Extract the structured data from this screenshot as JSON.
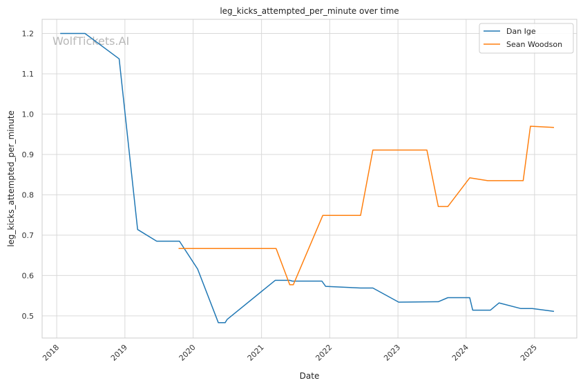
{
  "chart_data": {
    "type": "line",
    "title": "leg_kicks_attempted_per_minute over time",
    "xlabel": "Date",
    "ylabel": "leg_kicks_attempted_per_minute",
    "watermark": "WolfTickets.AI",
    "x_ticks": [
      "2018",
      "2019",
      "2020",
      "2021",
      "2022",
      "2023",
      "2024",
      "2025"
    ],
    "y_ticks": [
      "0.5",
      "0.6",
      "0.7",
      "0.8",
      "0.9",
      "1.0",
      "1.1",
      "1.2"
    ],
    "ylim": [
      0.445,
      1.235
    ],
    "xlim": [
      "2017-10-15",
      "2025-08-15"
    ],
    "grid": true,
    "legend_position": "top-right",
    "series": [
      {
        "name": "Dan Ige",
        "color": "#1f77b4",
        "points": [
          [
            "2018-01-20",
            1.2
          ],
          [
            "2018-06-01",
            1.2
          ],
          [
            "2018-12-01",
            1.137
          ],
          [
            "2019-03-10",
            0.714
          ],
          [
            "2019-06-20",
            0.685
          ],
          [
            "2019-10-20",
            0.685
          ],
          [
            "2020-01-25",
            0.616
          ],
          [
            "2020-05-15",
            0.483
          ],
          [
            "2020-06-20",
            0.483
          ],
          [
            "2020-07-01",
            0.491
          ],
          [
            "2021-03-15",
            0.588
          ],
          [
            "2021-06-01",
            0.588
          ],
          [
            "2021-06-15",
            0.586
          ],
          [
            "2021-11-20",
            0.586
          ],
          [
            "2021-12-10",
            0.573
          ],
          [
            "2022-06-15",
            0.569
          ],
          [
            "2022-08-20",
            0.569
          ],
          [
            "2023-01-05",
            0.534
          ],
          [
            "2023-08-05",
            0.535
          ],
          [
            "2023-09-25",
            0.545
          ],
          [
            "2024-01-20",
            0.545
          ],
          [
            "2024-02-05",
            0.514
          ],
          [
            "2024-05-10",
            0.514
          ],
          [
            "2024-06-25",
            0.532
          ],
          [
            "2024-10-20",
            0.518
          ],
          [
            "2024-12-20",
            0.518
          ],
          [
            "2025-04-15",
            0.511
          ]
        ]
      },
      {
        "name": "Sean Woodson",
        "color": "#ff7f0e",
        "points": [
          [
            "2019-10-15",
            0.667
          ],
          [
            "2021-03-20",
            0.667
          ],
          [
            "2021-06-01",
            0.577
          ],
          [
            "2021-06-20",
            0.577
          ],
          [
            "2021-11-25",
            0.749
          ],
          [
            "2022-06-15",
            0.749
          ],
          [
            "2022-08-20",
            0.911
          ],
          [
            "2023-06-05",
            0.911
          ],
          [
            "2023-08-05",
            0.771
          ],
          [
            "2023-09-25",
            0.771
          ],
          [
            "2024-01-20",
            0.842
          ],
          [
            "2024-04-25",
            0.835
          ],
          [
            "2024-11-01",
            0.835
          ],
          [
            "2024-12-10",
            0.97
          ],
          [
            "2025-04-15",
            0.967
          ]
        ]
      }
    ]
  }
}
